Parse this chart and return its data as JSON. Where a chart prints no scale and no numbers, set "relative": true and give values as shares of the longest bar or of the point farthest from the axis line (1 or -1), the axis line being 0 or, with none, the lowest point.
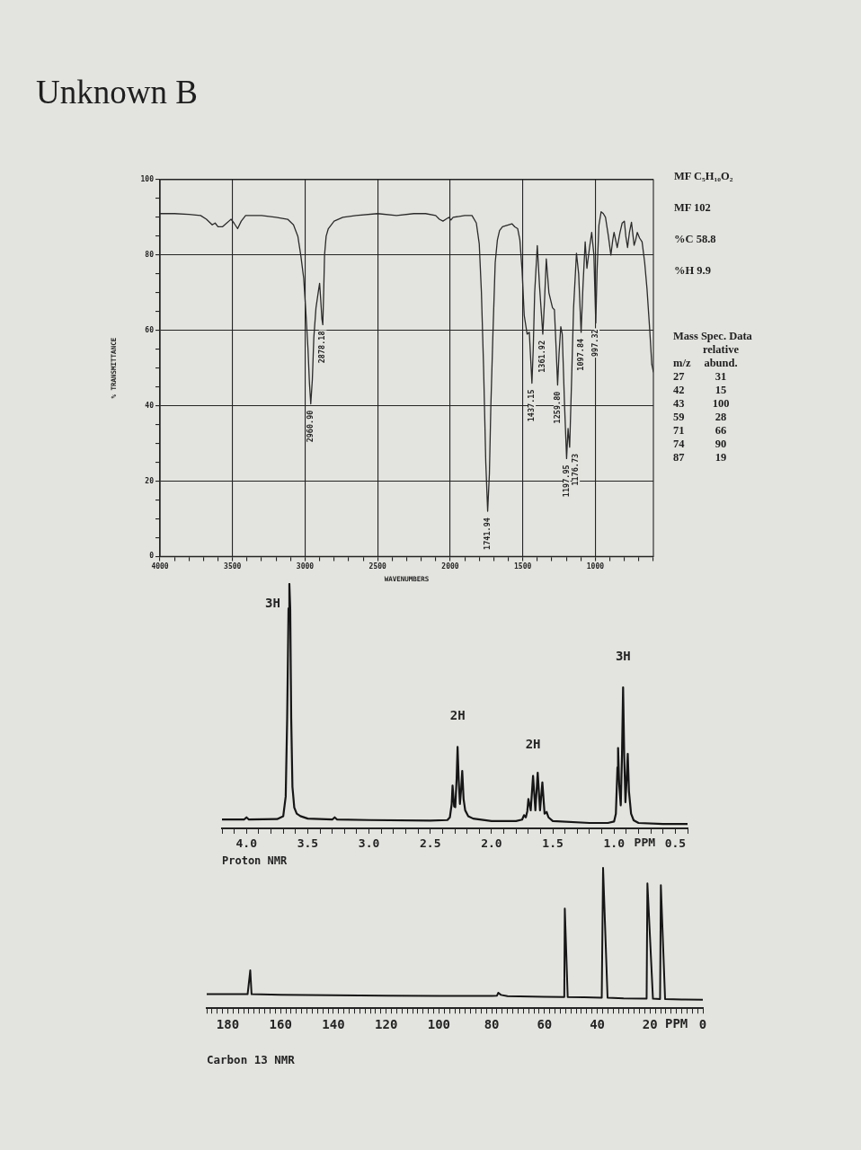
{
  "chart_data": [
    {
      "type": "line",
      "title": "Unknown B",
      "xlabel": "WAVENUMBERS",
      "ylabel": "% TRANSMITTANCE",
      "color": "#2b2b2b",
      "grid": true,
      "xlim": [
        4000,
        600
      ],
      "ylim": [
        0,
        100
      ],
      "xticks": [
        4000,
        {
          "value": 3900,
          "label": null
        },
        {
          "value": 3800,
          "label": null
        },
        {
          "value": 3700,
          "label": null
        },
        {
          "value": 3600,
          "label": null
        },
        3500,
        {
          "value": 3400,
          "label": null
        },
        {
          "value": 3300,
          "label": null
        },
        {
          "value": 3200,
          "label": null
        },
        {
          "value": 3100,
          "label": null
        },
        3000,
        {
          "value": 2900,
          "label": null
        },
        {
          "value": 2800,
          "label": null
        },
        {
          "value": 2700,
          "label": null
        },
        {
          "value": 2600,
          "label": null
        },
        2500,
        {
          "value": 2400,
          "label": null
        },
        {
          "value": 2300,
          "label": null
        },
        {
          "value": 2200,
          "label": null
        },
        {
          "value": 2100,
          "label": null
        },
        2000,
        {
          "value": 1900,
          "label": null
        },
        {
          "value": 1800,
          "label": null
        },
        {
          "value": 1700,
          "label": null
        },
        {
          "value": 1600,
          "label": null
        },
        1500,
        {
          "value": 1400,
          "label": null
        },
        {
          "value": 1300,
          "label": null
        },
        {
          "value": 1200,
          "label": null
        },
        {
          "value": 1100,
          "label": null
        },
        1000,
        {
          "value": 900,
          "label": null
        },
        {
          "value": 800,
          "label": null
        },
        {
          "value": 700,
          "label": null
        },
        {
          "value": 600,
          "label": null
        }
      ],
      "yticks": [
        0,
        {
          "value": 5,
          "label": null
        },
        {
          "value": 10,
          "label": null
        },
        {
          "value": 15,
          "label": null
        },
        20,
        {
          "value": 25,
          "label": null
        },
        {
          "value": 30,
          "label": null
        },
        {
          "value": 35,
          "label": null
        },
        40,
        {
          "value": 45,
          "label": null
        },
        {
          "value": 50,
          "label": null
        },
        {
          "value": 55,
          "label": null
        },
        60,
        {
          "value": 65,
          "label": null
        },
        {
          "value": 70,
          "label": null
        },
        {
          "value": 75,
          "label": null
        },
        80,
        {
          "value": 85,
          "label": null
        },
        {
          "value": 90,
          "label": null
        },
        {
          "value": 95,
          "label": null
        },
        100
      ],
      "x": [
        4000,
        3900,
        3800,
        3720,
        3680,
        3640,
        3620,
        3600,
        3570,
        3540,
        3510,
        3490,
        3465,
        3440,
        3410,
        3300,
        3200,
        3120,
        3080,
        3050,
        3030,
        3010,
        2995,
        2980,
        2970,
        2961,
        2950,
        2940,
        2925,
        2910,
        2900,
        2892,
        2884,
        2878,
        2872,
        2866,
        2855,
        2840,
        2800,
        2740,
        2650,
        2500,
        2370,
        2250,
        2170,
        2100,
        2075,
        2050,
        2030,
        2010,
        1995,
        1980,
        1900,
        1850,
        1820,
        1800,
        1785,
        1770,
        1755,
        1742,
        1730,
        1720,
        1705,
        1690,
        1675,
        1660,
        1640,
        1600,
        1575,
        1555,
        1535,
        1520,
        1505,
        1490,
        1470,
        1455,
        1445,
        1437,
        1428,
        1418,
        1400,
        1385,
        1362,
        1350,
        1338,
        1320,
        1295,
        1282,
        1270,
        1260,
        1250,
        1238,
        1228,
        1212,
        1198,
        1188,
        1177,
        1165,
        1150,
        1130,
        1115,
        1098,
        1085,
        1070,
        1058,
        1040,
        1025,
        1010,
        997,
        988,
        975,
        960,
        945,
        930,
        910,
        893,
        880,
        871,
        860,
        849,
        830,
        815,
        800,
        790,
        778,
        765,
        751,
        740,
        733,
        722,
        711,
        695,
        678,
        660,
        644,
        625,
        611,
        600
      ],
      "values": [
        91,
        91,
        90.8,
        90.5,
        89.5,
        88,
        88.5,
        87.5,
        87.5,
        88.5,
        89.5,
        88.5,
        87,
        89,
        90.5,
        90.5,
        90,
        89.5,
        88,
        85,
        80,
        74,
        65,
        55,
        46,
        40.5,
        47,
        58,
        66,
        70,
        72.5,
        68,
        63,
        61.5,
        70,
        80,
        85,
        87,
        89,
        90,
        90.5,
        91,
        90.5,
        91,
        91,
        90.5,
        89.5,
        89,
        89.5,
        90,
        89.3,
        90,
        90.5,
        90.5,
        88.5,
        83,
        70,
        50,
        25,
        12,
        22,
        40,
        60,
        78,
        84,
        86.5,
        87.5,
        88,
        88.3,
        87.5,
        87,
        84,
        76,
        64,
        59,
        59.5,
        52,
        46,
        55,
        70,
        82.5,
        72,
        59,
        68,
        79,
        70,
        66,
        65.5,
        55,
        45.5,
        54,
        61,
        59,
        40,
        26,
        34,
        29,
        45,
        66,
        80.5,
        75,
        59.5,
        72,
        83.5,
        76.5,
        82,
        86,
        80,
        62,
        76,
        88,
        91.5,
        91,
        90,
        85,
        80,
        84,
        86,
        84,
        82,
        86,
        88.5,
        89,
        85,
        82,
        86,
        88.7,
        85,
        82.6,
        84,
        86,
        84.5,
        83.5,
        78,
        71,
        60,
        51,
        49
      ],
      "annotations": [
        {
          "text": "2960.90",
          "x": 2960.9,
          "y": 40.5
        },
        {
          "text": "2878.18",
          "x": 2878.18,
          "y": 61.5
        },
        {
          "text": "1741.94",
          "x": 1741.94,
          "y": 12
        },
        {
          "text": "1437.15",
          "x": 1437.15,
          "y": 46
        },
        {
          "text": "1361.92",
          "x": 1361.92,
          "y": 59
        },
        {
          "text": "1259.80",
          "x": 1259.8,
          "y": 45.5
        },
        {
          "text": "1197.95",
          "x": 1197.95,
          "y": 26
        },
        {
          "text": "1176.73",
          "x": 1176.73,
          "y": 29
        },
        {
          "text": "1097.84",
          "x": 1097.84,
          "y": 59.5
        },
        {
          "text": "997.32",
          "x": 997.32,
          "y": 62
        }
      ]
    },
    {
      "type": "other",
      "annotations": [
        "MF C₅H₁₀O₂",
        "MF 102",
        "%C 58.8",
        "%H 9.9"
      ]
    },
    {
      "type": "other",
      "title": "Mass Spec. Data",
      "xlabel": "m/z",
      "ylabel": "relative abund.",
      "categories": [
        "27",
        "42",
        "43",
        "59",
        "71",
        "74",
        "87"
      ],
      "values": [
        31,
        15,
        100,
        28,
        66,
        90,
        19
      ],
      "data_labels": true
    },
    {
      "type": "line",
      "title": "Proton NMR",
      "xlabel": "PPM",
      "relative": true,
      "color": "#161616",
      "xlim": [
        4.2,
        0.4
      ],
      "xticks": [
        {
          "value": 4.2,
          "label": null
        },
        {
          "value": 4.1,
          "label": null
        },
        {
          "value": 4,
          "label": "4.0"
        },
        {
          "value": 3.9,
          "label": null
        },
        {
          "value": 3.8,
          "label": null
        },
        {
          "value": 3.7,
          "label": null
        },
        {
          "value": 3.6,
          "label": null
        },
        3.5,
        {
          "value": 3.4,
          "label": null
        },
        {
          "value": 3.3,
          "label": null
        },
        {
          "value": 3.2,
          "label": null
        },
        {
          "value": 3.1,
          "label": null
        },
        {
          "value": 3,
          "label": "3.0"
        },
        {
          "value": 2.9,
          "label": null
        },
        {
          "value": 2.8,
          "label": null
        },
        {
          "value": 2.7,
          "label": null
        },
        {
          "value": 2.6,
          "label": null
        },
        2.5,
        {
          "value": 2.4,
          "label": null
        },
        {
          "value": 2.3,
          "label": null
        },
        {
          "value": 2.2,
          "label": null
        },
        {
          "value": 2.1,
          "label": null
        },
        {
          "value": 2,
          "label": "2.0"
        },
        {
          "value": 1.9,
          "label": null
        },
        {
          "value": 1.8,
          "label": null
        },
        {
          "value": 1.7,
          "label": null
        },
        {
          "value": 1.6,
          "label": null
        },
        1.5,
        {
          "value": 1.4,
          "label": null
        },
        {
          "value": 1.3,
          "label": null
        },
        {
          "value": 1.2,
          "label": null
        },
        {
          "value": 1.1,
          "label": null
        },
        {
          "value": 1,
          "label": "1.0"
        },
        {
          "value": 0.9,
          "label": null
        },
        {
          "value": 0.8,
          "label": null
        },
        {
          "value": 0.7,
          "label": null
        },
        {
          "value": 0.6,
          "label": null
        },
        0.5,
        {
          "value": 0.4,
          "label": null
        }
      ],
      "x": [
        4.2,
        4.02,
        4.0,
        3.98,
        3.75,
        3.7,
        3.68,
        3.668,
        3.657,
        3.65,
        3.643,
        3.635,
        3.625,
        3.61,
        3.59,
        3.56,
        3.5,
        3.3,
        3.28,
        3.26,
        3.0,
        2.5,
        2.36,
        2.34,
        2.325,
        2.318,
        2.305,
        2.296,
        2.285,
        2.277,
        2.268,
        2.258,
        2.248,
        2.239,
        2.228,
        2.215,
        2.19,
        2.15,
        2.0,
        1.8,
        1.75,
        1.735,
        1.72,
        1.708,
        1.699,
        1.68,
        1.661,
        1.642,
        1.623,
        1.604,
        1.585,
        1.567,
        1.55,
        1.535,
        1.5,
        1.2,
        1.05,
        1.0,
        0.985,
        0.972,
        0.967,
        0.958,
        0.945,
        0.935,
        0.926,
        0.917,
        0.907,
        0.897,
        0.888,
        0.878,
        0.861,
        0.84,
        0.8,
        0.6,
        0.4
      ],
      "values": [
        0.036,
        0.036,
        0.045,
        0.036,
        0.038,
        0.05,
        0.13,
        0.45,
        0.9,
        1,
        0.9,
        0.45,
        0.17,
        0.085,
        0.06,
        0.05,
        0.04,
        0.036,
        0.045,
        0.036,
        0.034,
        0.032,
        0.034,
        0.045,
        0.1,
        0.175,
        0.09,
        0.087,
        0.2,
        0.333,
        0.2,
        0.1,
        0.16,
        0.235,
        0.12,
        0.074,
        0.05,
        0.04,
        0.03,
        0.03,
        0.036,
        0.054,
        0.045,
        0.07,
        0.12,
        0.074,
        0.215,
        0.074,
        0.228,
        0.074,
        0.188,
        0.06,
        0.067,
        0.045,
        0.03,
        0.022,
        0.022,
        0.028,
        0.06,
        0.25,
        0.329,
        0.18,
        0.094,
        0.3,
        0.577,
        0.3,
        0.107,
        0.2,
        0.305,
        0.15,
        0.06,
        0.033,
        0.022,
        0.018,
        0.018
      ],
      "annotations": [
        {
          "text": "3H",
          "x": 3.65,
          "y": 1
        },
        {
          "text": "2H",
          "x": 2.277,
          "y": 0.333
        },
        {
          "text": "2H",
          "x": 1.661,
          "y": 0.215
        },
        {
          "text": "3H",
          "x": 0.926,
          "y": 0.577
        }
      ]
    },
    {
      "type": "line",
      "title": "Carbon 13 NMR",
      "xlabel": "PPM",
      "relative": true,
      "color": "#161616",
      "xlim": [
        188,
        0
      ],
      "xticks": [
        {
          "value": 188,
          "label": null
        },
        {
          "value": 186,
          "label": null
        },
        {
          "value": 184,
          "label": null
        },
        {
          "value": 182,
          "label": null
        },
        180,
        {
          "value": 178,
          "label": null
        },
        {
          "value": 176,
          "label": null
        },
        {
          "value": 174,
          "label": null
        },
        {
          "value": 172,
          "label": null
        },
        {
          "value": 170,
          "label": null
        },
        {
          "value": 168,
          "label": null
        },
        {
          "value": 166,
          "label": null
        },
        {
          "value": 164,
          "label": null
        },
        {
          "value": 162,
          "label": null
        },
        160,
        {
          "value": 158,
          "label": null
        },
        {
          "value": 156,
          "label": null
        },
        {
          "value": 154,
          "label": null
        },
        {
          "value": 152,
          "label": null
        },
        {
          "value": 150,
          "label": null
        },
        {
          "value": 148,
          "label": null
        },
        {
          "value": 146,
          "label": null
        },
        {
          "value": 144,
          "label": null
        },
        {
          "value": 142,
          "label": null
        },
        140,
        {
          "value": 138,
          "label": null
        },
        {
          "value": 136,
          "label": null
        },
        {
          "value": 134,
          "label": null
        },
        {
          "value": 132,
          "label": null
        },
        {
          "value": 130,
          "label": null
        },
        {
          "value": 128,
          "label": null
        },
        {
          "value": 126,
          "label": null
        },
        {
          "value": 124,
          "label": null
        },
        {
          "value": 122,
          "label": null
        },
        120,
        {
          "value": 118,
          "label": null
        },
        {
          "value": 116,
          "label": null
        },
        {
          "value": 114,
          "label": null
        },
        {
          "value": 112,
          "label": null
        },
        {
          "value": 110,
          "label": null
        },
        {
          "value": 108,
          "label": null
        },
        {
          "value": 106,
          "label": null
        },
        {
          "value": 104,
          "label": null
        },
        {
          "value": 102,
          "label": null
        },
        100,
        {
          "value": 98,
          "label": null
        },
        {
          "value": 96,
          "label": null
        },
        {
          "value": 94,
          "label": null
        },
        {
          "value": 92,
          "label": null
        },
        {
          "value": 90,
          "label": null
        },
        {
          "value": 88,
          "label": null
        },
        {
          "value": 86,
          "label": null
        },
        {
          "value": 84,
          "label": null
        },
        {
          "value": 82,
          "label": null
        },
        80,
        {
          "value": 78,
          "label": null
        },
        {
          "value": 76,
          "label": null
        },
        {
          "value": 74,
          "label": null
        },
        {
          "value": 72,
          "label": null
        },
        {
          "value": 70,
          "label": null
        },
        {
          "value": 68,
          "label": null
        },
        {
          "value": 66,
          "label": null
        },
        {
          "value": 64,
          "label": null
        },
        {
          "value": 62,
          "label": null
        },
        60,
        {
          "value": 58,
          "label": null
        },
        {
          "value": 56,
          "label": null
        },
        {
          "value": 54,
          "label": null
        },
        {
          "value": 52,
          "label": null
        },
        {
          "value": 50,
          "label": null
        },
        {
          "value": 48,
          "label": null
        },
        {
          "value": 46,
          "label": null
        },
        {
          "value": 44,
          "label": null
        },
        {
          "value": 42,
          "label": null
        },
        40,
        {
          "value": 38,
          "label": null
        },
        {
          "value": 36,
          "label": null
        },
        {
          "value": 34,
          "label": null
        },
        {
          "value": 32,
          "label": null
        },
        {
          "value": 30,
          "label": null
        },
        {
          "value": 28,
          "label": null
        },
        {
          "value": 26,
          "label": null
        },
        {
          "value": 24,
          "label": null
        },
        {
          "value": 22,
          "label": null
        },
        20,
        {
          "value": 18,
          "label": null
        },
        {
          "value": 16,
          "label": null
        },
        {
          "value": 14,
          "label": null
        },
        {
          "value": 12,
          "label": null
        },
        {
          "value": 10,
          "label": null
        },
        {
          "value": 8,
          "label": null
        },
        {
          "value": 6,
          "label": null
        },
        {
          "value": 4,
          "label": null
        },
        {
          "value": 2,
          "label": null
        },
        0
      ],
      "x": [
        188,
        176,
        172.5,
        171.5,
        171,
        160,
        140,
        120,
        100,
        80,
        78,
        77.5,
        76.5,
        74,
        60,
        52.5,
        52.3,
        51.2,
        45,
        38.3,
        37.8,
        36.1,
        30,
        21.3,
        21,
        18.9,
        16.2,
        15.9,
        14.3,
        8,
        0
      ],
      "values": [
        0.1,
        0.1,
        0.1,
        0.27,
        0.1,
        0.095,
        0.092,
        0.09,
        0.088,
        0.088,
        0.09,
        0.11,
        0.095,
        0.086,
        0.082,
        0.08,
        0.71,
        0.08,
        0.078,
        0.075,
        1,
        0.075,
        0.07,
        0.068,
        0.89,
        0.068,
        0.065,
        0.876,
        0.065,
        0.062,
        0.06
      ]
    }
  ]
}
